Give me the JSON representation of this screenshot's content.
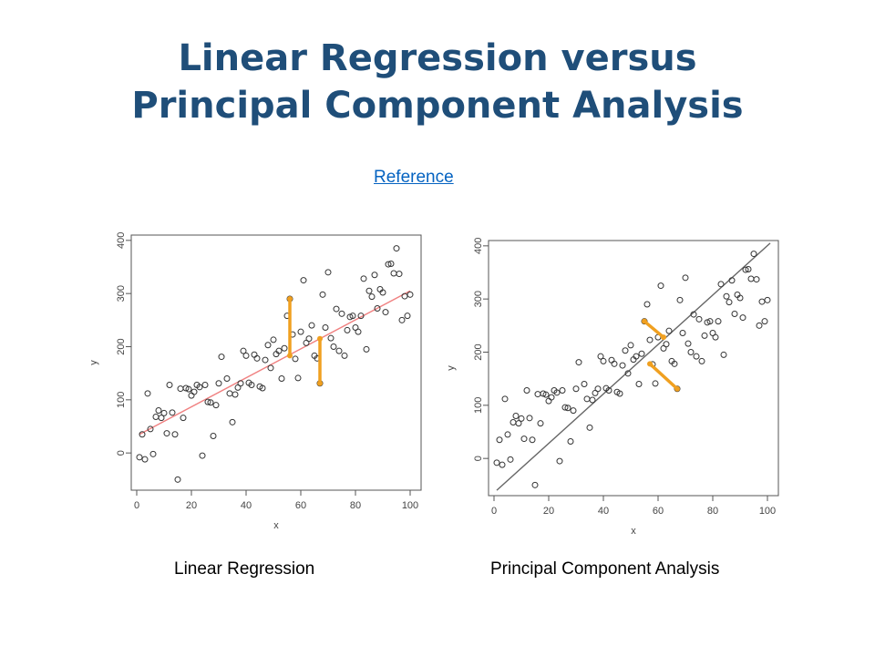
{
  "slide": {
    "title_line1": "Linear Regression versus",
    "title_line2": "Principal Component Analysis",
    "reference_link": "Reference"
  },
  "colors": {
    "title": "#1f4e79",
    "link": "#0563c1",
    "regression_line": "#f08080",
    "pca_line": "#666666",
    "residuals": "#f0a020"
  },
  "chart_data": [
    {
      "type": "scatter",
      "caption": "Linear Regression",
      "xlabel": "x",
      "ylabel": "y",
      "xlim": [
        -2,
        104
      ],
      "ylim": [
        -70,
        410
      ],
      "xticks": [
        0,
        20,
        40,
        60,
        80,
        100
      ],
      "yticks": [
        0,
        100,
        200,
        300,
        400
      ],
      "fit_line": {
        "from": [
          1,
          35
        ],
        "to": [
          100,
          305
        ]
      },
      "residuals": [
        {
          "x": 56,
          "from": 290,
          "to": 183
        },
        {
          "x": 67,
          "from": 215,
          "to": 131
        }
      ],
      "points": [
        [
          1,
          -8
        ],
        [
          2,
          35
        ],
        [
          3,
          -12
        ],
        [
          4,
          112
        ],
        [
          5,
          45
        ],
        [
          6,
          -2
        ],
        [
          7,
          68
        ],
        [
          8,
          80
        ],
        [
          9,
          66
        ],
        [
          10,
          75
        ],
        [
          11,
          37
        ],
        [
          12,
          128
        ],
        [
          13,
          76
        ],
        [
          14,
          35
        ],
        [
          15,
          -50
        ],
        [
          16,
          121
        ],
        [
          17,
          66
        ],
        [
          18,
          122
        ],
        [
          19,
          120
        ],
        [
          20,
          108
        ],
        [
          21,
          115
        ],
        [
          22,
          128
        ],
        [
          23,
          124
        ],
        [
          24,
          -5
        ],
        [
          25,
          128
        ],
        [
          26,
          96
        ],
        [
          27,
          95
        ],
        [
          28,
          32
        ],
        [
          29,
          90
        ],
        [
          30,
          131
        ],
        [
          31,
          181
        ],
        [
          33,
          140
        ],
        [
          34,
          112
        ],
        [
          35,
          58
        ],
        [
          36,
          110
        ],
        [
          37,
          123
        ],
        [
          38,
          131
        ],
        [
          39,
          192
        ],
        [
          40,
          183
        ],
        [
          41,
          132
        ],
        [
          42,
          128
        ],
        [
          43,
          185
        ],
        [
          44,
          178
        ],
        [
          45,
          125
        ],
        [
          46,
          122
        ],
        [
          47,
          175
        ],
        [
          48,
          203
        ],
        [
          49,
          160
        ],
        [
          50,
          213
        ],
        [
          51,
          186
        ],
        [
          52,
          192
        ],
        [
          53,
          140
        ],
        [
          54,
          197
        ],
        [
          55,
          258
        ],
        [
          56,
          290
        ],
        [
          57,
          223
        ],
        [
          58,
          177
        ],
        [
          59,
          141
        ],
        [
          60,
          228
        ],
        [
          61,
          325
        ],
        [
          62,
          207
        ],
        [
          63,
          215
        ],
        [
          64,
          240
        ],
        [
          65,
          183
        ],
        [
          66,
          178
        ],
        [
          67,
          131
        ],
        [
          68,
          298
        ],
        [
          69,
          236
        ],
        [
          70,
          340
        ],
        [
          71,
          216
        ],
        [
          72,
          200
        ],
        [
          73,
          271
        ],
        [
          74,
          192
        ],
        [
          75,
          262
        ],
        [
          76,
          183
        ],
        [
          77,
          231
        ],
        [
          78,
          256
        ],
        [
          79,
          258
        ],
        [
          80,
          236
        ],
        [
          81,
          228
        ],
        [
          82,
          258
        ],
        [
          83,
          328
        ],
        [
          84,
          195
        ],
        [
          85,
          305
        ],
        [
          86,
          294
        ],
        [
          87,
          335
        ],
        [
          88,
          272
        ],
        [
          89,
          308
        ],
        [
          90,
          302
        ],
        [
          91,
          265
        ],
        [
          92,
          355
        ],
        [
          93,
          356
        ],
        [
          94,
          338
        ],
        [
          95,
          385
        ],
        [
          96,
          337
        ],
        [
          97,
          250
        ],
        [
          98,
          295
        ],
        [
          99,
          258
        ],
        [
          100,
          298
        ]
      ]
    },
    {
      "type": "scatter",
      "caption": "Principal Component Analysis",
      "xlabel": "x",
      "ylabel": "y",
      "xlim": [
        -2,
        104
      ],
      "ylim": [
        -70,
        410
      ],
      "xticks": [
        0,
        20,
        40,
        60,
        80,
        100
      ],
      "yticks": [
        0,
        100,
        200,
        300,
        400
      ],
      "fit_line": {
        "from": [
          1,
          -60
        ],
        "to": [
          101,
          405
        ]
      },
      "residuals": [
        {
          "from": [
            55,
            258
          ],
          "to": [
            62,
            228
          ]
        },
        {
          "from": [
            67,
            131
          ],
          "to": [
            57,
            178
          ]
        }
      ],
      "points": [
        [
          1,
          -8
        ],
        [
          2,
          35
        ],
        [
          3,
          -12
        ],
        [
          4,
          112
        ],
        [
          5,
          45
        ],
        [
          6,
          -2
        ],
        [
          7,
          68
        ],
        [
          8,
          80
        ],
        [
          9,
          66
        ],
        [
          10,
          75
        ],
        [
          11,
          37
        ],
        [
          12,
          128
        ],
        [
          13,
          76
        ],
        [
          14,
          35
        ],
        [
          15,
          -50
        ],
        [
          16,
          121
        ],
        [
          17,
          66
        ],
        [
          18,
          122
        ],
        [
          19,
          120
        ],
        [
          20,
          108
        ],
        [
          21,
          115
        ],
        [
          22,
          128
        ],
        [
          23,
          124
        ],
        [
          24,
          -5
        ],
        [
          25,
          128
        ],
        [
          26,
          96
        ],
        [
          27,
          95
        ],
        [
          28,
          32
        ],
        [
          29,
          90
        ],
        [
          30,
          131
        ],
        [
          31,
          181
        ],
        [
          33,
          140
        ],
        [
          34,
          112
        ],
        [
          35,
          58
        ],
        [
          36,
          110
        ],
        [
          37,
          123
        ],
        [
          38,
          131
        ],
        [
          39,
          192
        ],
        [
          40,
          183
        ],
        [
          41,
          132
        ],
        [
          42,
          128
        ],
        [
          43,
          185
        ],
        [
          44,
          178
        ],
        [
          45,
          125
        ],
        [
          46,
          122
        ],
        [
          47,
          175
        ],
        [
          48,
          203
        ],
        [
          49,
          160
        ],
        [
          50,
          213
        ],
        [
          51,
          186
        ],
        [
          52,
          192
        ],
        [
          53,
          140
        ],
        [
          54,
          197
        ],
        [
          55,
          258
        ],
        [
          56,
          290
        ],
        [
          57,
          223
        ],
        [
          58,
          177
        ],
        [
          59,
          141
        ],
        [
          60,
          228
        ],
        [
          61,
          325
        ],
        [
          62,
          207
        ],
        [
          63,
          215
        ],
        [
          64,
          240
        ],
        [
          65,
          183
        ],
        [
          66,
          178
        ],
        [
          67,
          131
        ],
        [
          68,
          298
        ],
        [
          69,
          236
        ],
        [
          70,
          340
        ],
        [
          71,
          216
        ],
        [
          72,
          200
        ],
        [
          73,
          271
        ],
        [
          74,
          192
        ],
        [
          75,
          262
        ],
        [
          76,
          183
        ],
        [
          77,
          231
        ],
        [
          78,
          256
        ],
        [
          79,
          258
        ],
        [
          80,
          236
        ],
        [
          81,
          228
        ],
        [
          82,
          258
        ],
        [
          83,
          328
        ],
        [
          84,
          195
        ],
        [
          85,
          305
        ],
        [
          86,
          294
        ],
        [
          87,
          335
        ],
        [
          88,
          272
        ],
        [
          89,
          308
        ],
        [
          90,
          302
        ],
        [
          91,
          265
        ],
        [
          92,
          355
        ],
        [
          93,
          356
        ],
        [
          94,
          338
        ],
        [
          95,
          385
        ],
        [
          96,
          337
        ],
        [
          97,
          250
        ],
        [
          98,
          295
        ],
        [
          99,
          258
        ],
        [
          100,
          298
        ]
      ]
    }
  ]
}
